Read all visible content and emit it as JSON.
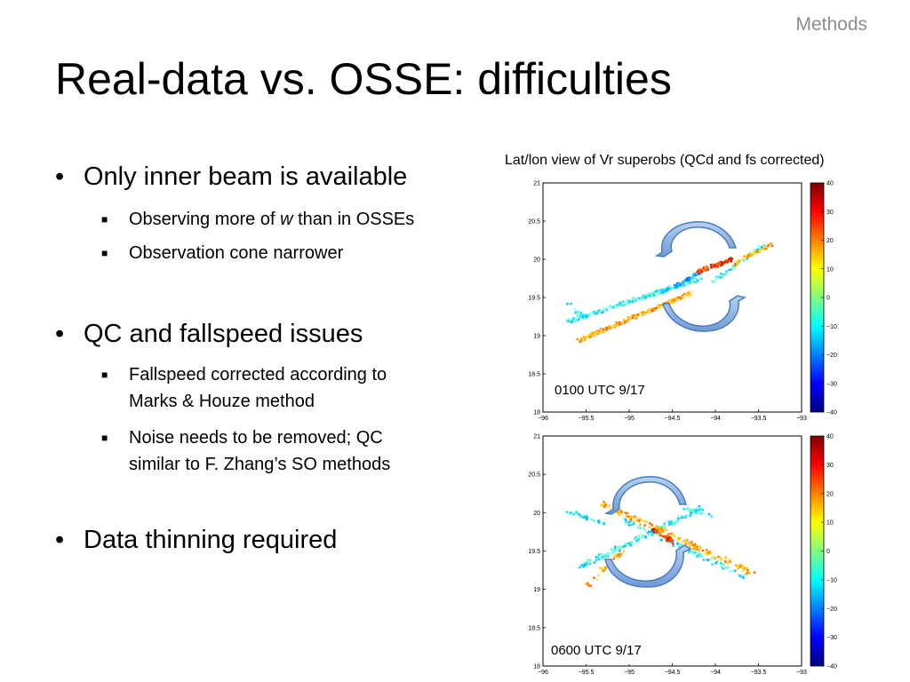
{
  "slide": {
    "section": "Methods",
    "title": "Real-data vs. OSSE: difficulties"
  },
  "bullets": [
    {
      "text": "Only inner beam is available",
      "sub": [
        {
          "before": "Observing more of ",
          "em": "w",
          "after": " than in OSSEs"
        },
        {
          "before": "Observation cone narrower",
          "em": "",
          "after": ""
        }
      ]
    },
    {
      "text": "QC and fallspeed issues",
      "sub": [
        {
          "line1": "Fallspeed corrected according to",
          "line2": "Marks & Houze method"
        },
        {
          "line1": "Noise needs to be removed; QC",
          "line2": "similar to F. Zhang’s SO methods"
        }
      ]
    },
    {
      "text": "Data thinning required",
      "sub": []
    }
  ],
  "figure": {
    "caption": "Lat/lon view of Vr superobs (QCd and fs corrected)",
    "panels": [
      {
        "label": "0100 UTC 9/17"
      },
      {
        "label": "0600 UTC 9/17"
      }
    ],
    "x_ticks": [
      "−96",
      "−95.5",
      "−95",
      "−94.5",
      "−94",
      "−93.5",
      "−93"
    ],
    "y_ticks": [
      "21",
      "20.5",
      "20",
      "19.5",
      "19",
      "18.5",
      "18"
    ],
    "colorbar_ticks": [
      "40",
      "30",
      "20",
      "10",
      "0",
      "−10",
      "−20",
      "−30",
      "−40"
    ],
    "colormap": "jet"
  }
}
